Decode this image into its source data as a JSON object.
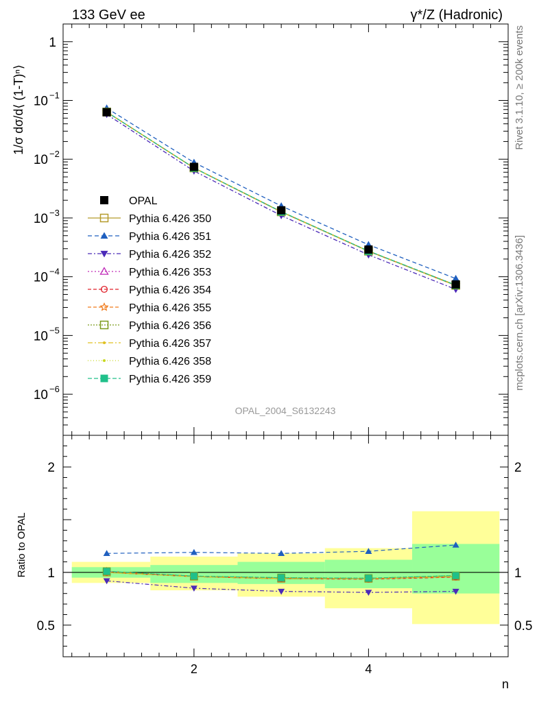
{
  "header": {
    "left": "133 GeV ee",
    "right": "γ*/Z (Hadronic)"
  },
  "side_labels": {
    "rivet": "Rivet 3.1.10, ≥ 200k events",
    "mcplots": "mcplots.cern.ch [arXiv:1306.3436]"
  },
  "analysis_label": "OPAL_2004_S6132243",
  "colors": {
    "data": "#000000",
    "band_outer": "#ffff99",
    "band_inner": "#99ff99"
  },
  "chart_data": [
    {
      "type": "line",
      "panel": "main",
      "scale": "log",
      "ylabel": "1/σ dσ/d⟨ (1-T)ⁿ⟩",
      "xlim": [
        0.5,
        5.6
      ],
      "ylim": [
        2e-07,
        2
      ],
      "y_ticks": [
        {
          "value": 1,
          "label": "1"
        },
        {
          "value": 0.1,
          "label": "10",
          "exp": "−1"
        },
        {
          "value": 0.01,
          "label": "10",
          "exp": "−2"
        },
        {
          "value": 0.001,
          "label": "10",
          "exp": "−3"
        },
        {
          "value": 0.0001,
          "label": "10",
          "exp": "−4"
        },
        {
          "value": 1e-05,
          "label": "10",
          "exp": "−5"
        },
        {
          "value": 1e-06,
          "label": "10",
          "exp": "−6"
        }
      ],
      "x": [
        1,
        2,
        3,
        4,
        5
      ],
      "series": [
        {
          "name": "OPAL",
          "color": "#000000",
          "dash": "",
          "marker": "filled-square",
          "values": [
            0.063,
            0.0074,
            0.00135,
            0.00029,
            7.4e-05
          ]
        },
        {
          "name": "Pythia 6.426 350",
          "color": "#b59a2a",
          "dash": "",
          "marker": "open-square",
          "values": [
            0.0635,
            0.0071,
            0.00127,
            0.000272,
            7.1e-05
          ]
        },
        {
          "name": "Pythia 6.426 351",
          "color": "#1f5fbf",
          "dash": "6,4",
          "marker": "filled-triangle-up",
          "values": [
            0.074,
            0.0088,
            0.0016,
            0.00035,
            9.3e-05
          ]
        },
        {
          "name": "Pythia 6.426 352",
          "color": "#4b2ab8",
          "dash": "6,3,2,3",
          "marker": "filled-triangle-down",
          "values": [
            0.058,
            0.0063,
            0.0011,
            0.000236,
            6.1e-05
          ]
        },
        {
          "name": "Pythia 6.426 353",
          "color": "#c02ab8",
          "dash": "2,3",
          "marker": "open-triangle-up",
          "values": [
            0.0637,
            0.0071,
            0.00127,
            0.000273,
            7.1e-05
          ]
        },
        {
          "name": "Pythia 6.426 354",
          "color": "#e0202a",
          "dash": "5,3",
          "marker": "open-circle",
          "values": [
            0.0634,
            0.0071,
            0.00127,
            0.000271,
            7.1e-05
          ]
        },
        {
          "name": "Pythia 6.426 355",
          "color": "#f07a1a",
          "dash": "5,3",
          "marker": "open-star",
          "values": [
            0.0636,
            0.00712,
            0.00128,
            0.000273,
            7.2e-05
          ]
        },
        {
          "name": "Pythia 6.426 356",
          "color": "#7a9a1a",
          "dash": "2,2",
          "marker": "open-square",
          "values": [
            0.0636,
            0.00712,
            0.00128,
            0.000274,
            7.2e-05
          ]
        },
        {
          "name": "Pythia 6.426 357",
          "color": "#e0c020",
          "dash": "7,3,2,3",
          "marker": "small-dot",
          "values": [
            0.0635,
            0.0071,
            0.00127,
            0.000272,
            7.1e-05
          ]
        },
        {
          "name": "Pythia 6.426 358",
          "color": "#c8d820",
          "dash": "1,3",
          "marker": "small-dot",
          "values": [
            0.0635,
            0.0071,
            0.00127,
            0.000272,
            7.1e-05
          ]
        },
        {
          "name": "Pythia 6.426 359",
          "color": "#20c08a",
          "dash": "6,3",
          "marker": "filled-square",
          "values": [
            0.0636,
            0.00712,
            0.00128,
            0.000274,
            7.2e-05
          ]
        }
      ]
    },
    {
      "type": "line",
      "panel": "ratio",
      "ylabel": "Ratio to OPAL",
      "xlabel": "n",
      "xlim": [
        0.5,
        5.6
      ],
      "ylim": [
        0.2,
        2.3
      ],
      "y_ticks": [
        {
          "value": 0.5,
          "label": "0.5"
        },
        {
          "value": 1,
          "label": "1"
        },
        {
          "value": 2,
          "label": "2"
        }
      ],
      "x_ticks": [
        {
          "value": 2,
          "label": "2"
        },
        {
          "value": 4,
          "label": "4"
        }
      ],
      "bands": [
        {
          "x0": 0.6,
          "x1": 1.5,
          "outer": [
            0.9,
            1.1
          ],
          "inner": [
            0.95,
            1.05
          ]
        },
        {
          "x0": 1.5,
          "x1": 2.5,
          "outer": [
            0.83,
            1.15
          ],
          "inner": [
            0.9,
            1.07
          ]
        },
        {
          "x0": 2.5,
          "x1": 3.5,
          "outer": [
            0.77,
            1.18
          ],
          "inner": [
            0.89,
            1.1
          ]
        },
        {
          "x0": 3.5,
          "x1": 4.5,
          "outer": [
            0.66,
            1.23
          ],
          "inner": [
            0.85,
            1.12
          ]
        },
        {
          "x0": 4.5,
          "x1": 5.5,
          "outer": [
            0.51,
            1.58
          ],
          "inner": [
            0.8,
            1.27
          ]
        }
      ],
      "x": [
        1,
        2,
        3,
        4,
        5
      ],
      "series": [
        {
          "name": "Pythia 6.426 350",
          "values": [
            1.0,
            0.96,
            0.94,
            0.94,
            0.96
          ]
        },
        {
          "name": "Pythia 6.426 351",
          "values": [
            1.18,
            1.19,
            1.18,
            1.2,
            1.26
          ]
        },
        {
          "name": "Pythia 6.426 352",
          "values": [
            0.92,
            0.85,
            0.82,
            0.81,
            0.82
          ]
        },
        {
          "name": "Pythia 6.426 353",
          "values": [
            1.01,
            0.96,
            0.94,
            0.94,
            0.96
          ]
        },
        {
          "name": "Pythia 6.426 354",
          "values": [
            1.0,
            0.96,
            0.94,
            0.935,
            0.955
          ]
        },
        {
          "name": "Pythia 6.426 355",
          "values": [
            1.01,
            0.965,
            0.945,
            0.94,
            0.965
          ]
        },
        {
          "name": "Pythia 6.426 356",
          "values": [
            1.01,
            0.965,
            0.95,
            0.945,
            0.97
          ]
        },
        {
          "name": "Pythia 6.426 357",
          "values": [
            1.0,
            0.96,
            0.94,
            0.94,
            0.96
          ]
        },
        {
          "name": "Pythia 6.426 358",
          "values": [
            1.0,
            0.96,
            0.94,
            0.94,
            0.96
          ]
        },
        {
          "name": "Pythia 6.426 359",
          "values": [
            1.01,
            0.965,
            0.95,
            0.945,
            0.97
          ]
        }
      ]
    }
  ]
}
